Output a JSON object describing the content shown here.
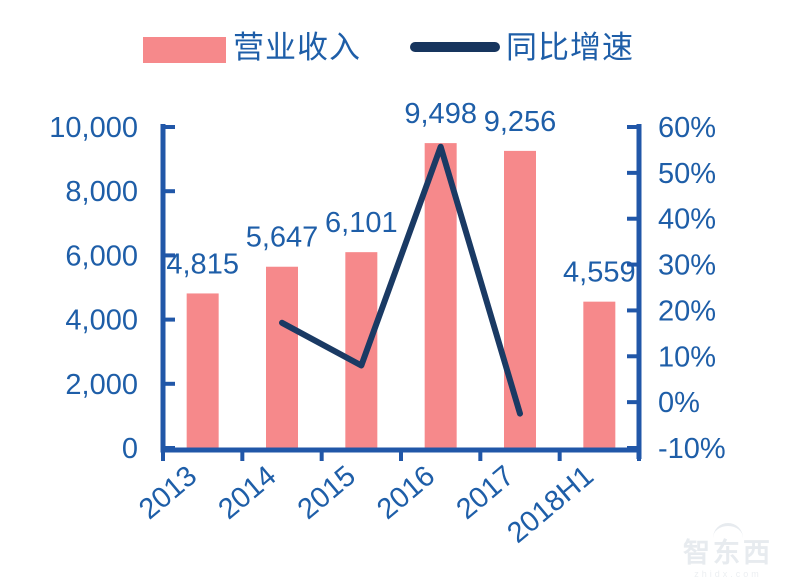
{
  "colors": {
    "bar": "#F6898B",
    "line": "#1A3A64",
    "legend_line": "#17355E",
    "axis": "#2157A8",
    "text": "#1E5EA8"
  },
  "legend": {
    "items": [
      {
        "label": "营业收入",
        "swatch": "bar"
      },
      {
        "label": "同比增速",
        "swatch": "line"
      }
    ]
  },
  "watermark": {
    "title": "智东西",
    "subtitle": "zhidx.com"
  },
  "chart_data": {
    "type": "bar+line",
    "title": "",
    "categories": [
      "2013",
      "2014",
      "2015",
      "2016",
      "2017",
      "2018H1"
    ],
    "series": [
      {
        "name": "营业收入",
        "type": "bar",
        "axis": "left",
        "values": [
          4815,
          5647,
          6101,
          9498,
          9256,
          4559
        ],
        "value_labels": [
          "4,815",
          "5,647",
          "6,101",
          "9,498",
          "9,256",
          "4,559"
        ]
      },
      {
        "name": "同比增速",
        "type": "line",
        "axis": "right",
        "values": [
          null,
          17.3,
          8.0,
          55.7,
          -2.5,
          null
        ]
      }
    ],
    "left_axis": {
      "min": 0,
      "max": 10000,
      "tick_values": [
        0,
        2000,
        4000,
        6000,
        8000,
        10000
      ],
      "tick_labels": [
        "0",
        "2,000",
        "4,000",
        "6,000",
        "8,000",
        "10,000"
      ]
    },
    "right_axis": {
      "min": -10,
      "max": 60,
      "tick_values": [
        -10,
        0,
        10,
        20,
        30,
        40,
        50,
        60
      ],
      "tick_labels": [
        "-10%",
        "0%",
        "10%",
        "20%",
        "30%",
        "40%",
        "50%",
        "60%"
      ]
    },
    "grid": false,
    "legend_position": "top"
  }
}
